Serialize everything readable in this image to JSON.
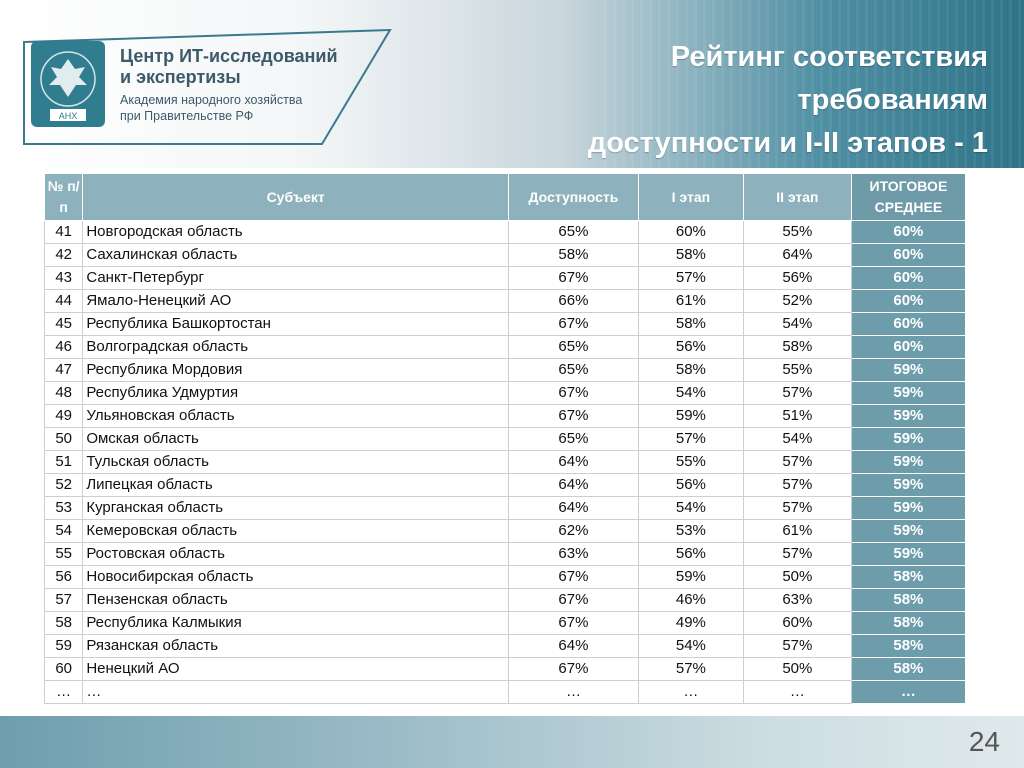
{
  "header": {
    "org_title_line1": "Центр ИТ-исследований",
    "org_title_line2": "и экспертизы",
    "org_sub_line1": "Академия народного хозяйства",
    "org_sub_line2": "при Правительстве РФ",
    "emblem_text": "АНХ",
    "slide_title_line1": "Рейтинг соответствия",
    "slide_title_line2": "требованиям",
    "slide_title_line3": "доступности и I-II этапов - 1"
  },
  "table": {
    "headers": {
      "num": "№ п/п",
      "subject": "Субъект",
      "availability": "Доступность",
      "stage1": "I этап",
      "stage2": "II этап",
      "final": "ИТОГОВОЕ СРЕДНЕЕ"
    },
    "rows": [
      {
        "num": "41",
        "name": "Новгородская область",
        "availability": "65%",
        "stage1": "60%",
        "stage2": "55%",
        "final": "60%"
      },
      {
        "num": "42",
        "name": "Сахалинская область",
        "availability": "58%",
        "stage1": "58%",
        "stage2": "64%",
        "final": "60%"
      },
      {
        "num": "43",
        "name": "Санкт-Петербург",
        "availability": "67%",
        "stage1": "57%",
        "stage2": "56%",
        "final": "60%"
      },
      {
        "num": "44",
        "name": "Ямало-Ненецкий АО",
        "availability": "66%",
        "stage1": "61%",
        "stage2": "52%",
        "final": "60%"
      },
      {
        "num": "45",
        "name": "Республика Башкортостан",
        "availability": "67%",
        "stage1": "58%",
        "stage2": "54%",
        "final": "60%"
      },
      {
        "num": "46",
        "name": "Волгоградская область",
        "availability": "65%",
        "stage1": "56%",
        "stage2": "58%",
        "final": "60%"
      },
      {
        "num": "47",
        "name": "Республика Мордовия",
        "availability": "65%",
        "stage1": "58%",
        "stage2": "55%",
        "final": "59%"
      },
      {
        "num": "48",
        "name": "Республика Удмуртия",
        "availability": "67%",
        "stage1": "54%",
        "stage2": "57%",
        "final": "59%"
      },
      {
        "num": "49",
        "name": "Ульяновская область",
        "availability": "67%",
        "stage1": "59%",
        "stage2": "51%",
        "final": "59%"
      },
      {
        "num": "50",
        "name": "Омская область",
        "availability": "65%",
        "stage1": "57%",
        "stage2": "54%",
        "final": "59%"
      },
      {
        "num": "51",
        "name": "Тульская область",
        "availability": "64%",
        "stage1": "55%",
        "stage2": "57%",
        "final": "59%"
      },
      {
        "num": "52",
        "name": "Липецкая область",
        "availability": "64%",
        "stage1": "56%",
        "stage2": "57%",
        "final": "59%"
      },
      {
        "num": "53",
        "name": "Курганская область",
        "availability": "64%",
        "stage1": "54%",
        "stage2": "57%",
        "final": "59%"
      },
      {
        "num": "54",
        "name": "Кемеровская область",
        "availability": "62%",
        "stage1": "53%",
        "stage2": "61%",
        "final": "59%"
      },
      {
        "num": "55",
        "name": "Ростовская область",
        "availability": "63%",
        "stage1": "56%",
        "stage2": "57%",
        "final": "59%"
      },
      {
        "num": "56",
        "name": "Новосибирская область",
        "availability": "67%",
        "stage1": "59%",
        "stage2": "50%",
        "final": "58%"
      },
      {
        "num": "57",
        "name": "Пензенская область",
        "availability": "67%",
        "stage1": "46%",
        "stage2": "63%",
        "final": "58%"
      },
      {
        "num": "58",
        "name": "Республика Калмыкия",
        "availability": "67%",
        "stage1": "49%",
        "stage2": "60%",
        "final": "58%"
      },
      {
        "num": "59",
        "name": "Рязанская область",
        "availability": "64%",
        "stage1": "54%",
        "stage2": "57%",
        "final": "58%"
      },
      {
        "num": "60",
        "name": "Ненецкий АО",
        "availability": "67%",
        "stage1": "57%",
        "stage2": "50%",
        "final": "58%"
      },
      {
        "num": "…",
        "name": "…",
        "availability": "…",
        "stage1": "…",
        "stage2": "…",
        "final": "…"
      }
    ]
  },
  "footer": {
    "page_number": "24"
  },
  "colors": {
    "header_accent": "#2f7388",
    "table_header": "#8db1bd",
    "final_column": "#6d9cab"
  }
}
